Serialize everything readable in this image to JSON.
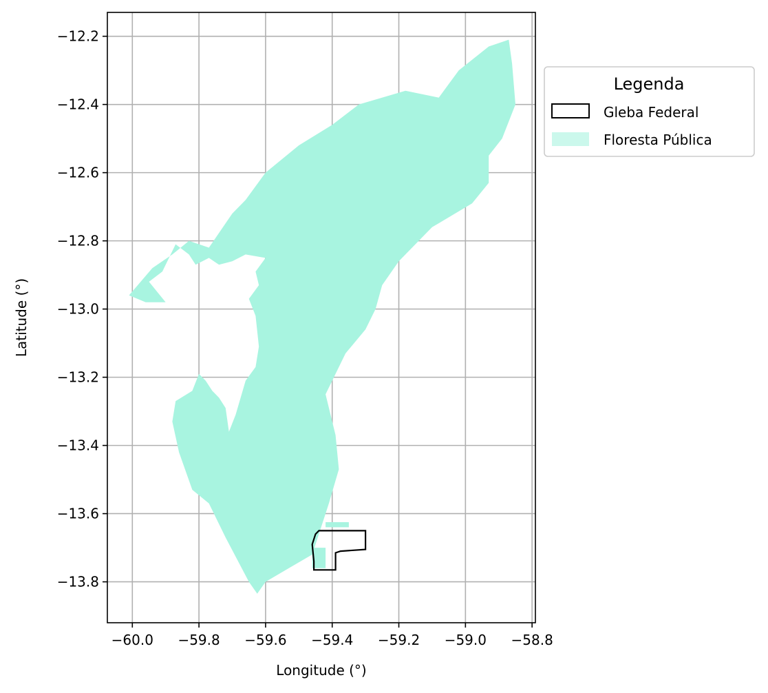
{
  "map": {
    "xlabel": "Longitude (°)",
    "ylabel": "Latitude (°)",
    "xlim": [
      -60.075,
      -58.79
    ],
    "ylim": [
      -13.92,
      -12.13
    ],
    "x_ticks": [
      -60.0,
      -59.8,
      -59.6,
      -59.4,
      -59.2,
      -59.0,
      -58.8
    ],
    "x_tick_labels": [
      "−60.0",
      "−59.8",
      "−59.6",
      "−59.4",
      "−59.2",
      "−59.0",
      "−58.8"
    ],
    "y_ticks": [
      -12.2,
      -12.4,
      -12.6,
      -12.8,
      -13.0,
      -13.2,
      -13.4,
      -13.6,
      -13.8
    ],
    "y_tick_labels": [
      "−12.2",
      "−12.4",
      "−12.6",
      "−12.8",
      "−13.0",
      "−13.2",
      "−13.4",
      "−13.6",
      "−13.8"
    ],
    "grid": true,
    "legend": {
      "placement": "outside-top-right",
      "title": "Legenda",
      "entries": [
        {
          "label": "Gleba Federal",
          "style": "outline",
          "color": "#000000"
        },
        {
          "label": "Floresta Pública",
          "style": "fill",
          "color": "#a8f4e0"
        }
      ]
    },
    "colors": {
      "forest": "#a8f4e0",
      "gleba_outline": "#000000",
      "grid": "#b0b0b0"
    },
    "forest_polygon": [
      [
        -59.77,
        -12.82
      ],
      [
        -59.7,
        -12.72
      ],
      [
        -59.66,
        -12.68
      ],
      [
        -59.6,
        -12.6
      ],
      [
        -59.5,
        -12.52
      ],
      [
        -59.4,
        -12.46
      ],
      [
        -59.32,
        -12.4
      ],
      [
        -59.18,
        -12.36
      ],
      [
        -59.08,
        -12.38
      ],
      [
        -59.02,
        -12.3
      ],
      [
        -58.93,
        -12.23
      ],
      [
        -58.87,
        -12.21
      ],
      [
        -58.86,
        -12.28
      ],
      [
        -58.85,
        -12.4
      ],
      [
        -58.89,
        -12.5
      ],
      [
        -58.93,
        -12.55
      ],
      [
        -58.93,
        -12.63
      ],
      [
        -58.98,
        -12.69
      ],
      [
        -59.1,
        -12.76
      ],
      [
        -59.2,
        -12.86
      ],
      [
        -59.25,
        -12.93
      ],
      [
        -59.27,
        -13.0
      ],
      [
        -59.3,
        -13.06
      ],
      [
        -59.36,
        -13.13
      ],
      [
        -59.42,
        -13.25
      ],
      [
        -59.39,
        -13.37
      ],
      [
        -59.38,
        -13.47
      ],
      [
        -59.41,
        -13.57
      ],
      [
        -59.44,
        -13.66
      ],
      [
        -59.46,
        -13.72
      ],
      [
        -59.53,
        -13.76
      ],
      [
        -59.6,
        -13.8
      ],
      [
        -59.625,
        -13.835
      ],
      [
        -59.65,
        -13.8
      ],
      [
        -59.72,
        -13.67
      ],
      [
        -59.77,
        -13.57
      ],
      [
        -59.82,
        -13.53
      ],
      [
        -59.86,
        -13.42
      ],
      [
        -59.88,
        -13.33
      ],
      [
        -59.87,
        -13.27
      ],
      [
        -59.82,
        -13.24
      ],
      [
        -59.8,
        -13.19
      ],
      [
        -59.78,
        -13.21
      ],
      [
        -59.76,
        -13.24
      ],
      [
        -59.74,
        -13.26
      ],
      [
        -59.72,
        -13.29
      ],
      [
        -59.71,
        -13.36
      ],
      [
        -59.69,
        -13.31
      ],
      [
        -59.66,
        -13.21
      ],
      [
        -59.63,
        -13.17
      ],
      [
        -59.62,
        -13.11
      ],
      [
        -59.63,
        -13.02
      ],
      [
        -59.65,
        -12.97
      ],
      [
        -59.62,
        -12.93
      ],
      [
        -59.63,
        -12.89
      ],
      [
        -59.6,
        -12.85
      ],
      [
        -59.66,
        -12.84
      ],
      [
        -59.7,
        -12.86
      ],
      [
        -59.74,
        -12.87
      ],
      [
        -59.77,
        -12.85
      ],
      [
        -59.81,
        -12.87
      ],
      [
        -59.83,
        -12.84
      ],
      [
        -59.87,
        -12.81
      ],
      [
        -59.91,
        -12.89
      ],
      [
        -59.95,
        -12.92
      ],
      [
        -59.9,
        -12.98
      ],
      [
        -59.96,
        -12.98
      ],
      [
        -60.01,
        -12.96
      ],
      [
        -59.94,
        -12.88
      ],
      [
        -59.88,
        -12.84
      ],
      [
        -59.83,
        -12.8
      ]
    ],
    "forest_patches": [
      [
        [
          -59.42,
          -13.625
        ],
        [
          -59.35,
          -13.625
        ],
        [
          -59.35,
          -13.64
        ],
        [
          -59.42,
          -13.64
        ]
      ],
      [
        [
          -59.46,
          -13.7
        ],
        [
          -59.42,
          -13.7
        ],
        [
          -59.42,
          -13.76
        ],
        [
          -59.46,
          -13.76
        ]
      ]
    ],
    "gleba_polygon": [
      [
        -59.44,
        -13.65
      ],
      [
        -59.3,
        -13.65
      ],
      [
        -59.3,
        -13.705
      ],
      [
        -59.375,
        -13.71
      ],
      [
        -59.39,
        -13.715
      ],
      [
        -59.39,
        -13.765
      ],
      [
        -59.455,
        -13.765
      ],
      [
        -59.455,
        -13.74
      ],
      [
        -59.46,
        -13.69
      ],
      [
        -59.45,
        -13.66
      ]
    ]
  }
}
